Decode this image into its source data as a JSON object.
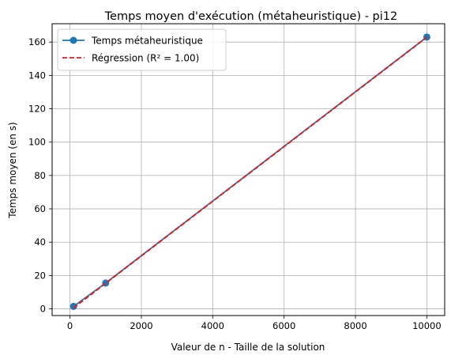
{
  "chart_data": {
    "type": "line",
    "title": "Temps moyen d'exécution (métaheuristique) - pi12",
    "xlabel": "Valeur de n - Taille de la solution",
    "ylabel": "Temps moyen (en s)",
    "xlim": [
      -500,
      10500
    ],
    "ylim": [
      -4,
      171
    ],
    "xticks": [
      0,
      2000,
      4000,
      6000,
      8000,
      10000
    ],
    "xtick_labels": [
      "0",
      "2000",
      "4000",
      "6000",
      "8000",
      "10000"
    ],
    "yticks": [
      0,
      20,
      40,
      60,
      80,
      100,
      120,
      140,
      160
    ],
    "ytick_labels": [
      "0",
      "20",
      "40",
      "60",
      "80",
      "100",
      "120",
      "140",
      "160"
    ],
    "grid": true,
    "legend_position": "top-left",
    "series": [
      {
        "name": "Temps métaheuristique",
        "style": "solid-line-with-markers",
        "color": "#1f77b4",
        "x": [
          100,
          1000,
          10000
        ],
        "y": [
          1.5,
          15.5,
          163
        ]
      },
      {
        "name": "Régression (R² = 1.00)",
        "style": "dashed-line",
        "color": "#e41a1c",
        "x": [
          100,
          10000
        ],
        "y": [
          0.6,
          162.9
        ]
      }
    ]
  }
}
